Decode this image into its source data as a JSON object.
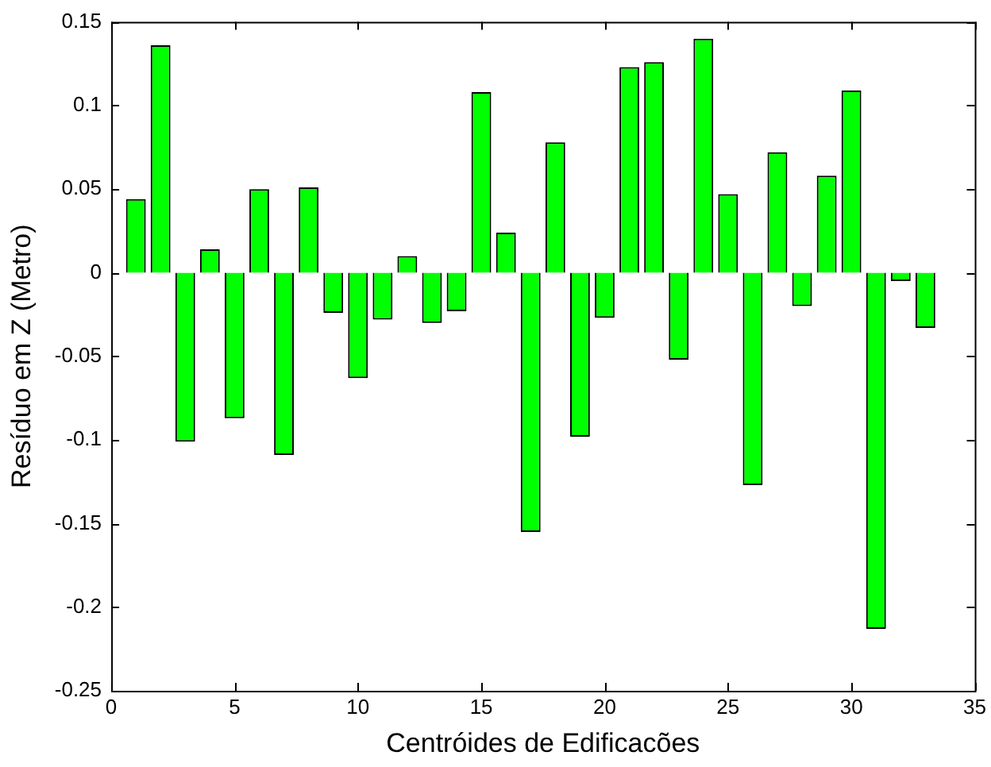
{
  "chart_data": {
    "type": "bar",
    "xlabel": "Centróides de Edificacões",
    "ylabel": "Resíduo em Z (Metro)",
    "x": [
      1,
      2,
      3,
      4,
      5,
      6,
      7,
      8,
      9,
      10,
      11,
      12,
      13,
      14,
      15,
      16,
      17,
      18,
      19,
      20,
      21,
      22,
      23,
      24,
      25,
      26,
      27,
      28,
      29,
      30,
      31,
      32,
      33
    ],
    "values": [
      0.044,
      0.136,
      -0.101,
      0.014,
      -0.087,
      0.05,
      -0.109,
      0.051,
      -0.024,
      -0.063,
      -0.028,
      0.01,
      -0.03,
      -0.023,
      0.108,
      0.024,
      -0.155,
      0.078,
      -0.098,
      -0.027,
      0.123,
      0.126,
      -0.052,
      0.14,
      0.047,
      -0.127,
      0.072,
      -0.02,
      0.058,
      0.109,
      -0.213,
      -0.005,
      -0.033
    ],
    "color": "#00ff00",
    "xlim": [
      0,
      35
    ],
    "xticks": [
      0,
      5,
      10,
      15,
      20,
      25,
      30,
      35
    ],
    "ylim": [
      -0.25,
      0.15
    ],
    "yticks": [
      -0.25,
      -0.2,
      -0.15,
      -0.1,
      -0.05,
      0,
      0.05,
      0.1,
      0.15
    ],
    "grid": false,
    "legend": false
  }
}
